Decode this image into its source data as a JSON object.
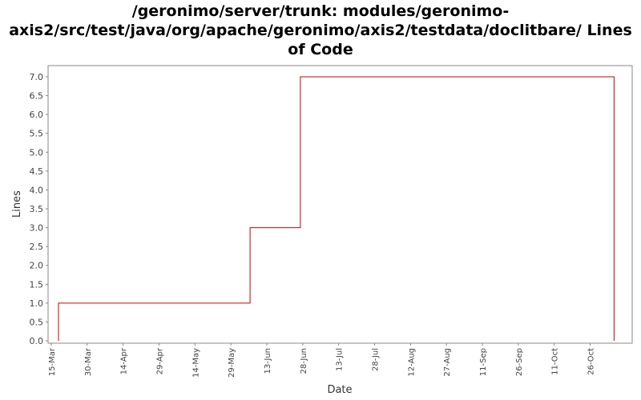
{
  "chart_data": {
    "type": "line",
    "title_lines": [
      "/geronimo/server/trunk: modules/geronimo-",
      "axis2/src/test/java/org/apache/geronimo/axis2/testdata/doclitbare/ Lines",
      "of Code"
    ],
    "xlabel": "Date",
    "ylabel": "Lines",
    "ylim": [
      0,
      7.0
    ],
    "y_ticks": [
      "0.0",
      "0.5",
      "1.0",
      "1.5",
      "2.0",
      "2.5",
      "3.0",
      "3.5",
      "4.0",
      "4.5",
      "5.0",
      "5.5",
      "6.0",
      "6.5",
      "7.0"
    ],
    "x_range_days": [
      0,
      240
    ],
    "x_ticks": [
      {
        "label": "15-Mar",
        "day": 0
      },
      {
        "label": "30-Mar",
        "day": 15
      },
      {
        "label": "14-Apr",
        "day": 30
      },
      {
        "label": "29-Apr",
        "day": 45
      },
      {
        "label": "14-May",
        "day": 60
      },
      {
        "label": "29-May",
        "day": 75
      },
      {
        "label": "13-Jun",
        "day": 90
      },
      {
        "label": "28-Jun",
        "day": 105
      },
      {
        "label": "13-Jul",
        "day": 120
      },
      {
        "label": "28-Jul",
        "day": 135
      },
      {
        "label": "12-Aug",
        "day": 150
      },
      {
        "label": "27-Aug",
        "day": 165
      },
      {
        "label": "11-Sep",
        "day": 180
      },
      {
        "label": "26-Sep",
        "day": 195
      },
      {
        "label": "11-Oct",
        "day": 210
      },
      {
        "label": "26-Oct",
        "day": 225
      }
    ],
    "series": [
      {
        "color": "#cc0000",
        "step": true,
        "points": [
          {
            "day": 3,
            "value": 0
          },
          {
            "day": 3,
            "value": 1
          },
          {
            "day": 83,
            "value": 1
          },
          {
            "day": 83,
            "value": 3
          },
          {
            "day": 104,
            "value": 3
          },
          {
            "day": 104,
            "value": 7
          },
          {
            "day": 235,
            "value": 7
          },
          {
            "day": 235,
            "value": 0
          }
        ]
      }
    ],
    "grid": false
  }
}
